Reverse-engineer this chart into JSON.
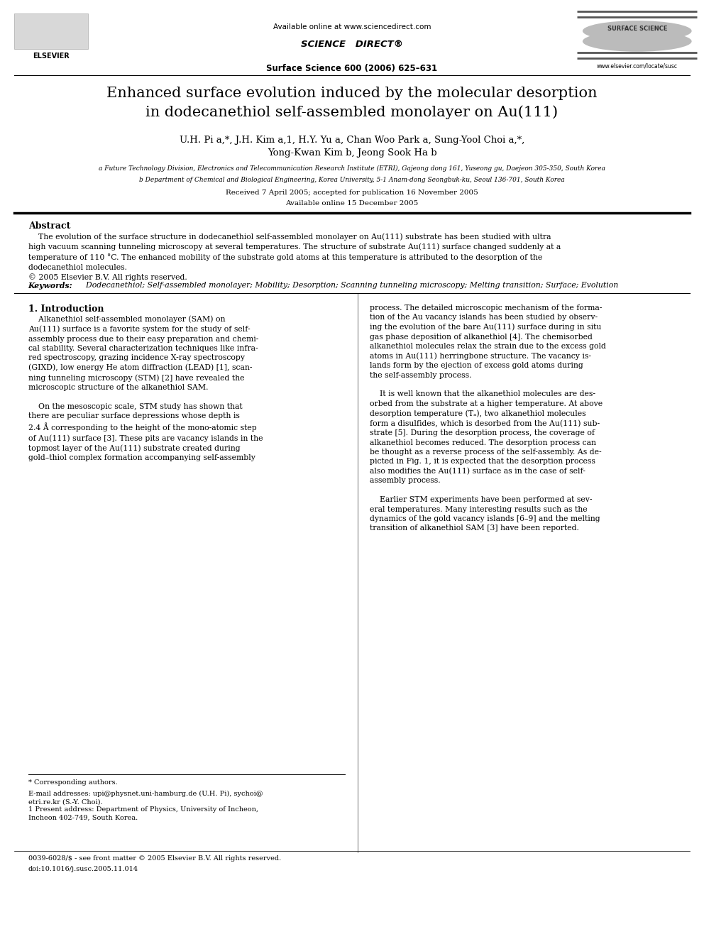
{
  "bg_color": "#ffffff",
  "page_width": 9.92,
  "page_height": 13.23,
  "header": {
    "available_online": "Available online at www.sciencedirect.com",
    "journal_info": "Surface Science 600 (2006) 625–631",
    "website": "www.elsevier.com/locate/susc",
    "journal_name": "SURFACE SCIENCE"
  },
  "title": "Enhanced surface evolution induced by the molecular desorption\nin dodecanethiol self-assembled monolayer on Au(111)",
  "authors": "U.H. Pi a,*, J.H. Kim a,1, H.Y. Yu a, Chan Woo Park a, Sung-Yool Choi a,*,\nYong-Kwan Kim b, Jeong Sook Ha b",
  "affil_a": "a Future Technology Division, Electronics and Telecommunication Research Institute (ETRI), Gajeong dong 161, Yuseong gu, Daejeon 305-350, South Korea",
  "affil_b": "b Department of Chemical and Biological Engineering, Korea University, 5-1 Anam-dong Seongbuk-ku, Seoul 136-701, South Korea",
  "received": "Received 7 April 2005; accepted for publication 16 November 2005",
  "available": "Available online 15 December 2005",
  "abstract_title": "Abstract",
  "keywords_label": "Keywords:",
  "keywords_text": "  Dodecanethiol; Self-assembled monolayer; Mobility; Desorption; Scanning tunneling microscopy; Melting transition; Surface; Evolution",
  "section1_title": "1. Introduction",
  "footnote_star": "* Corresponding authors.",
  "footnote_email": "E-mail addresses: upi@physnet.uni-hamburg.de (U.H. Pi), sychoi@\netri.re.kr (S.-Y. Choi).",
  "footnote_1": "1 Present address: Department of Physics, University of Incheon,\nIncheon 402-749, South Korea.",
  "issn": "0039-6028/$ - see front matter © 2005 Elsevier B.V. All rights reserved.",
  "doi": "doi:10.1016/j.susc.2005.11.014"
}
